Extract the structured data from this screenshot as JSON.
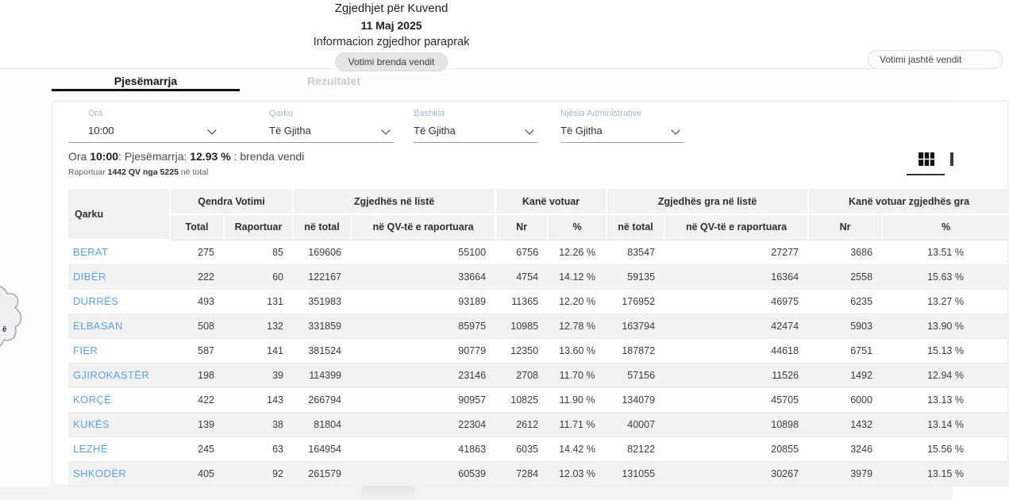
{
  "colors": {
    "accent_blue": "#58a2f2",
    "tab_active": "#111111",
    "tab_inactive": "#c6cbce",
    "table_header_bg": "#f2f2f2",
    "row_alt_bg": "#f2f2f2",
    "pill_active_bg": "#e4e4e4"
  },
  "header": {
    "title": "Zgjedhjet për Kuvend",
    "date": "11 Maj 2025",
    "subtitle": "Informacion zgjedhor paraprak",
    "vote_toggle": {
      "inside_label": "Votimi brenda vendit",
      "outside_label": "Votimi jashtë vendit"
    }
  },
  "tabs": {
    "participation": "Pjesëmarrja",
    "results": "Rezultatet"
  },
  "filters": {
    "ora": {
      "label": "Ora",
      "value": "10:00"
    },
    "qarku": {
      "label": "Qarku",
      "value": "Të Gjitha"
    },
    "bashkia": {
      "label": "Bashkia",
      "value": "Të Gjitha"
    },
    "njesia": {
      "label": "Njësia Administrative",
      "value": "Të Gjitha"
    }
  },
  "summary": {
    "line1_prefix": "Ora ",
    "line1_time": "10:00",
    "line1_mid": ": Pjesëmarrja: ",
    "line1_pct": "12.93 %",
    "line1_suffix": " : brenda vendi",
    "line2_prefix": "Raportuar ",
    "line2_bold": "1442 QV nga 5225",
    "line2_suffix": " në total"
  },
  "icons": {
    "view_table": "table-view-icon",
    "view_partial_right": "partial-icon",
    "filter_chevron": "chevron-down-icon"
  },
  "map_fragment": {
    "label": "ë"
  },
  "table": {
    "group_headers": {
      "qarku": "Qarku",
      "qendra": "Qendra Votimi",
      "zgjedhes": "Zgjedhës në listë",
      "kane_votuar": "Kanë votuar",
      "zgjedhes_gra": "Zgjedhës gra në listë",
      "kane_votuar_gra": "Kanë votuar zgjedhës gra"
    },
    "sub_headers": {
      "total": "Total",
      "raportuar": "Raportuar",
      "ne_total_1": "në total",
      "ne_qv_1": "në QV-të e raportuara",
      "nr_1": "Nr",
      "pct_1": "%",
      "ne_total_2": "në total",
      "ne_qv_2": "në QV-të e raportuara",
      "nr_2": "Nr",
      "pct_2": "%"
    },
    "columns": [
      {
        "key": "qarku",
        "align": "left"
      },
      {
        "key": "total",
        "align": "right"
      },
      {
        "key": "raportuar",
        "align": "right"
      },
      {
        "key": "zl_total",
        "align": "right"
      },
      {
        "key": "zl_qv",
        "align": "right"
      },
      {
        "key": "kv_nr",
        "align": "right"
      },
      {
        "key": "kv_pct",
        "align": "center"
      },
      {
        "key": "zgl_total",
        "align": "right"
      },
      {
        "key": "zgl_qv",
        "align": "right"
      },
      {
        "key": "kvg_nr",
        "align": "right"
      },
      {
        "key": "kvg_pct",
        "align": "center"
      }
    ],
    "rows": [
      {
        "qarku": "BERAT",
        "total": "275",
        "raportuar": "85",
        "zl_total": "169606",
        "zl_qv": "55100",
        "kv_nr": "6756",
        "kv_pct": "12.26 %",
        "zgl_total": "83547",
        "zgl_qv": "27277",
        "kvg_nr": "3686",
        "kvg_pct": "13.51 %"
      },
      {
        "qarku": "DIBËR",
        "total": "222",
        "raportuar": "60",
        "zl_total": "122167",
        "zl_qv": "33664",
        "kv_nr": "4754",
        "kv_pct": "14.12 %",
        "zgl_total": "59135",
        "zgl_qv": "16364",
        "kvg_nr": "2558",
        "kvg_pct": "15.63 %"
      },
      {
        "qarku": "DURRËS",
        "total": "493",
        "raportuar": "131",
        "zl_total": "351983",
        "zl_qv": "93189",
        "kv_nr": "11365",
        "kv_pct": "12.20 %",
        "zgl_total": "176952",
        "zgl_qv": "46975",
        "kvg_nr": "6235",
        "kvg_pct": "13.27 %"
      },
      {
        "qarku": "ELBASAN",
        "total": "508",
        "raportuar": "132",
        "zl_total": "331859",
        "zl_qv": "85975",
        "kv_nr": "10985",
        "kv_pct": "12.78 %",
        "zgl_total": "163794",
        "zgl_qv": "42474",
        "kvg_nr": "5903",
        "kvg_pct": "13.90 %"
      },
      {
        "qarku": "FIER",
        "total": "587",
        "raportuar": "141",
        "zl_total": "381524",
        "zl_qv": "90779",
        "kv_nr": "12350",
        "kv_pct": "13.60 %",
        "zgl_total": "187872",
        "zgl_qv": "44618",
        "kvg_nr": "6751",
        "kvg_pct": "15.13 %"
      },
      {
        "qarku": "GJIROKASTËR",
        "total": "198",
        "raportuar": "39",
        "zl_total": "114399",
        "zl_qv": "23146",
        "kv_nr": "2708",
        "kv_pct": "11.70 %",
        "zgl_total": "57156",
        "zgl_qv": "11526",
        "kvg_nr": "1492",
        "kvg_pct": "12.94 %"
      },
      {
        "qarku": "KORÇË",
        "total": "422",
        "raportuar": "143",
        "zl_total": "266794",
        "zl_qv": "90957",
        "kv_nr": "10825",
        "kv_pct": "11.90 %",
        "zgl_total": "134079",
        "zgl_qv": "45705",
        "kvg_nr": "6000",
        "kvg_pct": "13.13 %"
      },
      {
        "qarku": "KUKËS",
        "total": "139",
        "raportuar": "38",
        "zl_total": "81804",
        "zl_qv": "22304",
        "kv_nr": "2612",
        "kv_pct": "11.71 %",
        "zgl_total": "40007",
        "zgl_qv": "10898",
        "kvg_nr": "1432",
        "kvg_pct": "13.14 %"
      },
      {
        "qarku": "LEZHË",
        "total": "245",
        "raportuar": "63",
        "zl_total": "164954",
        "zl_qv": "41863",
        "kv_nr": "6035",
        "kv_pct": "14.42 %",
        "zgl_total": "82122",
        "zgl_qv": "20855",
        "kvg_nr": "3246",
        "kvg_pct": "15.56 %"
      },
      {
        "qarku": "SHKODËR",
        "total": "405",
        "raportuar": "92",
        "zl_total": "261579",
        "zl_qv": "60539",
        "kv_nr": "7284",
        "kv_pct": "12.03 %",
        "zgl_total": "131055",
        "zgl_qv": "30267",
        "kvg_nr": "3979",
        "kvg_pct": "13.15 %"
      }
    ]
  }
}
